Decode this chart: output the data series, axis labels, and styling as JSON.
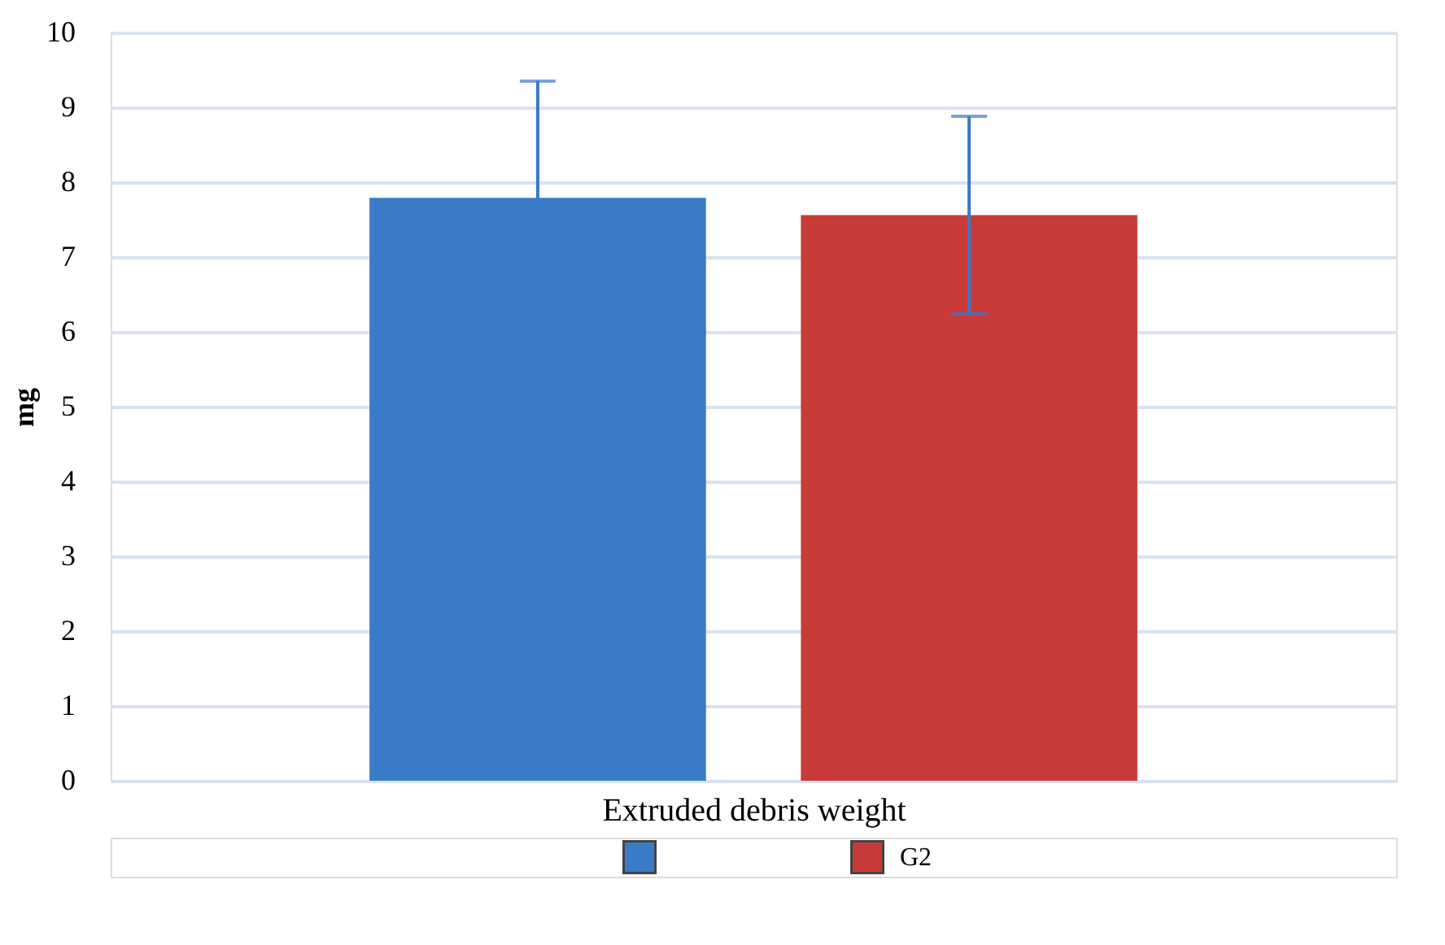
{
  "chart_data": {
    "type": "bar",
    "ylabel": "mg",
    "xlabel": "Extruded debris weight",
    "categories": [
      null
    ],
    "series": [
      {
        "color": "#3a7bc8",
        "values": [
          7.79
        ],
        "errors": [
          1.56
        ]
      },
      {
        "name": "G2",
        "color": "#c93b38",
        "values": [
          7.56
        ],
        "errors": [
          1.32
        ]
      }
    ],
    "ylim": [
      0,
      10
    ],
    "yticks": [
      0,
      1,
      2,
      3,
      4,
      5,
      6,
      7,
      8,
      9,
      10
    ],
    "grid": "y",
    "legend": "bottom"
  }
}
